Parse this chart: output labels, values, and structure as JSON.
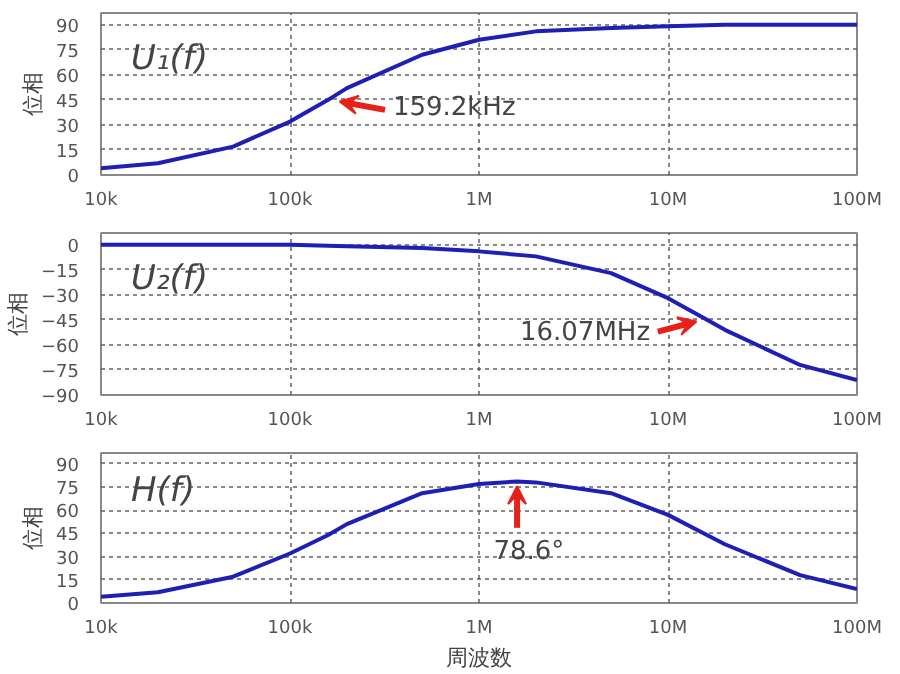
{
  "chart_data": [
    {
      "type": "line",
      "title": "U₁(f)",
      "ylabel": "位相",
      "x": [
        10000,
        20000,
        50000,
        100000,
        159200,
        200000,
        500000,
        1000000,
        2000000,
        5000000,
        10000000,
        20000000,
        50000000,
        100000000
      ],
      "series": [
        {
          "color": "#1f1fb4",
          "values": [
            4,
            7,
            17,
            32,
            45,
            52,
            72,
            81,
            86,
            88,
            89,
            90,
            90,
            90
          ]
        }
      ],
      "xlim": [
        10000,
        100000000
      ],
      "xticks": [
        {
          "value": 10000,
          "label": "10k"
        },
        {
          "value": 100000,
          "label": "100k"
        },
        {
          "value": 1000000,
          "label": "1M"
        },
        {
          "value": 10000000,
          "label": "10M"
        },
        {
          "value": 100000000,
          "label": "100M"
        }
      ],
      "ylim": [
        0,
        97
      ],
      "yticks": [
        0,
        15,
        30,
        45,
        60,
        75,
        90
      ],
      "log": "x",
      "grid": true,
      "annotations": [
        {
          "text": "159.2kHz",
          "x": 159200,
          "y": 45
        }
      ]
    },
    {
      "type": "line",
      "title": "U₂(f)",
      "ylabel": "位相",
      "x": [
        10000,
        20000,
        50000,
        100000,
        200000,
        500000,
        1000000,
        2000000,
        5000000,
        10000000,
        16070000,
        20000000,
        50000000,
        100000000
      ],
      "series": [
        {
          "color": "#1f1fb4",
          "values": [
            0,
            0,
            0,
            0,
            -1,
            -2,
            -4,
            -7,
            -17,
            -32,
            -45,
            -51,
            -72,
            -81
          ]
        }
      ],
      "xlim": [
        10000,
        100000000
      ],
      "xticks": [
        {
          "value": 10000,
          "label": "10k"
        },
        {
          "value": 100000,
          "label": "100k"
        },
        {
          "value": 1000000,
          "label": "1M"
        },
        {
          "value": 10000000,
          "label": "10M"
        },
        {
          "value": 100000000,
          "label": "100M"
        }
      ],
      "ylim": [
        -90,
        7
      ],
      "yticks": [
        -90,
        -75,
        -60,
        -45,
        -30,
        -15,
        0
      ],
      "log": "x",
      "grid": true,
      "annotations": [
        {
          "text": "16.07MHz",
          "x": 16070000,
          "y": -45
        }
      ]
    },
    {
      "type": "line",
      "title": "H(f)",
      "ylabel": "位相",
      "xlabel": "周波数",
      "x": [
        10000,
        20000,
        50000,
        100000,
        159200,
        200000,
        500000,
        1000000,
        1590000,
        2000000,
        5000000,
        10000000,
        16070000,
        20000000,
        50000000,
        100000000
      ],
      "series": [
        {
          "color": "#1f1fb4",
          "values": [
            4,
            7,
            17,
            32,
            44,
            51,
            71,
            77,
            78.6,
            78,
            71,
            57,
            44,
            38,
            18,
            9
          ]
        }
      ],
      "xlim": [
        10000,
        100000000
      ],
      "xticks": [
        {
          "value": 10000,
          "label": "10k"
        },
        {
          "value": 100000,
          "label": "100k"
        },
        {
          "value": 1000000,
          "label": "1M"
        },
        {
          "value": 10000000,
          "label": "10M"
        },
        {
          "value": 100000000,
          "label": "100M"
        }
      ],
      "ylim": [
        0,
        97
      ],
      "yticks": [
        0,
        15,
        30,
        45,
        60,
        75,
        90
      ],
      "log": "x",
      "grid": true,
      "annotations": [
        {
          "text": "78.6°",
          "x": 1590000,
          "y": 78.6
        }
      ]
    }
  ]
}
